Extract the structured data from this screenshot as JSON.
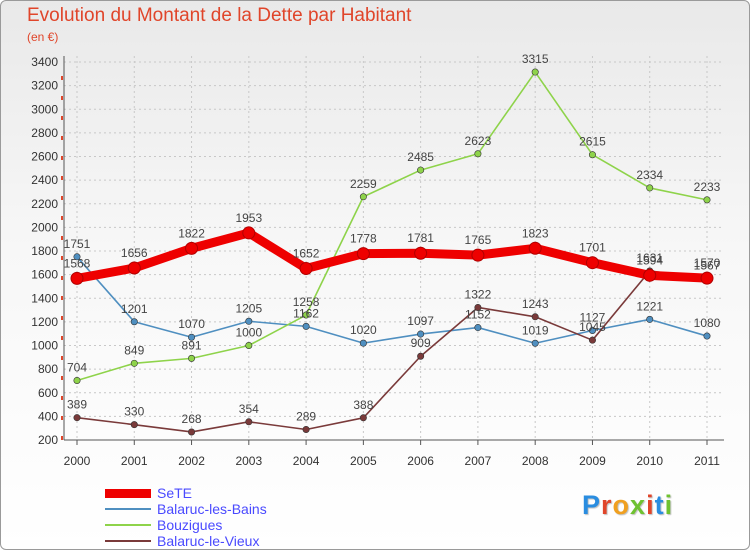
{
  "header": {
    "title": "Evolution du Montant de la Dette par Habitant",
    "unit": "(en €)"
  },
  "colors": {
    "title": "#e0452a",
    "legend_text": "#4a4aff",
    "axis_text": "#333333",
    "grid": "#c8c8c8"
  },
  "logo": {
    "text": "Proxiti",
    "letter_colors": [
      "#2a8de0",
      "#e0452a",
      "#f0a020",
      "#6fc230",
      "#e0452a",
      "#2a8de0",
      "#6fc230"
    ]
  },
  "chart_data": {
    "type": "line",
    "title": "Evolution du Montant de la Dette par Habitant",
    "ylabel": "(en €)",
    "xlabel": "",
    "x": [
      "2000",
      "2001",
      "2002",
      "2003",
      "2004",
      "2005",
      "2006",
      "2007",
      "2008",
      "2009",
      "2010",
      "2011"
    ],
    "ylim": [
      200,
      3400
    ],
    "yticks": [
      200,
      400,
      600,
      800,
      1000,
      1200,
      1400,
      1600,
      1800,
      2000,
      2200,
      2400,
      2600,
      2800,
      3000,
      3200,
      3400
    ],
    "grid": true,
    "legend_position": "bottom-left",
    "series": [
      {
        "name": "SeTE",
        "color": "#ee0000",
        "emphasis": true,
        "values": [
          1568,
          1656,
          1822,
          1953,
          1652,
          1778,
          1781,
          1765,
          1823,
          1701,
          1594,
          1570
        ],
        "labels": [
          "1568",
          "1656",
          "1822",
          "1953",
          "1652",
          "1778",
          "1781",
          "1765",
          "1823",
          "1701",
          "1594",
          "1570"
        ]
      },
      {
        "name": "Balaruc-les-Bains",
        "color": "#4f8fc0",
        "values": [
          1751,
          1201,
          1070,
          1205,
          1162,
          1020,
          1097,
          1152,
          1019,
          1127,
          1221,
          1080
        ],
        "labels": [
          "1751",
          "1201",
          "1070",
          "1205",
          "1162",
          "1020",
          "1097",
          "1152",
          "1019",
          "1127",
          "1221",
          "1080"
        ]
      },
      {
        "name": "Bouzigues",
        "color": "#8ed34a",
        "values": [
          704,
          849,
          891,
          1000,
          1258,
          2259,
          2485,
          2623,
          3315,
          2615,
          2334,
          2233
        ],
        "labels": [
          "704",
          "849",
          "891",
          "1000",
          "1258",
          "2259",
          "2485",
          "2623",
          "3315",
          "2615",
          "2334",
          "2233"
        ]
      },
      {
        "name": "Balaruc-le-Vieux",
        "color": "#7a3a3a",
        "values": [
          389,
          330,
          268,
          354,
          289,
          388,
          909,
          1322,
          1243,
          1045,
          1631,
          1567
        ],
        "labels": [
          "389",
          "330",
          "268",
          "354",
          "289",
          "388",
          "909",
          "1322",
          "1243",
          "1045",
          "1631",
          "1567"
        ]
      }
    ]
  }
}
